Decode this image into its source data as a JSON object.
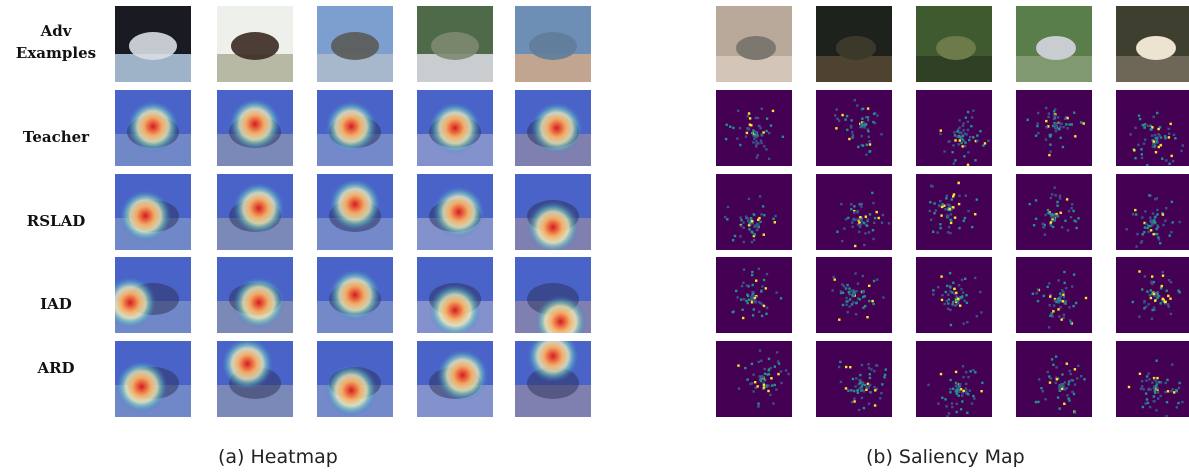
{
  "rows": [
    {
      "label_lines": [
        "Adv",
        "Examples"
      ]
    },
    {
      "label_lines": [
        "Teacher"
      ]
    },
    {
      "label_lines": [
        "RSLAD"
      ]
    },
    {
      "label_lines": [
        "IAD"
      ]
    },
    {
      "label_lines": [
        "ARD"
      ]
    }
  ],
  "captions": {
    "heatmap": "(a) Heatmap",
    "saliency": "(b) Saliency Map"
  },
  "colors": {
    "saliency_background": "#440154",
    "saliency_mid": "#21918c",
    "saliency_high": "#fde725",
    "heatmap_base": "#4a63c8",
    "heatmap_hot": "#d7191c"
  }
}
